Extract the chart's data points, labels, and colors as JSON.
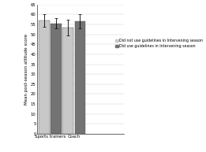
{
  "groups": [
    "Sports trainers",
    "Coach"
  ],
  "bar1_values": [
    57.0,
    53.5
  ],
  "bar2_values": [
    55.5,
    56.5
  ],
  "bar1_errors": [
    3.0,
    4.0
  ],
  "bar2_errors": [
    2.5,
    3.5
  ],
  "bar1_color": "#c8c8c8",
  "bar2_color": "#737373",
  "ylabel": "Mean post-season attitude score",
  "ylim": [
    0,
    65
  ],
  "yticks": [
    0,
    5,
    10,
    15,
    20,
    25,
    30,
    35,
    40,
    45,
    50,
    55,
    60,
    65
  ],
  "legend1": "Did not use guidelines in Intervening season",
  "legend2": "Did use guidelines in Intervening season",
  "bar_width": 0.18,
  "group_centers": [
    0.22,
    0.62
  ],
  "xlim": [
    0.0,
    1.45
  ],
  "background_color": "#ffffff",
  "label_fontsize": 4.0,
  "tick_fontsize": 3.8,
  "legend_fontsize": 3.4,
  "edgecolor": "#555555"
}
